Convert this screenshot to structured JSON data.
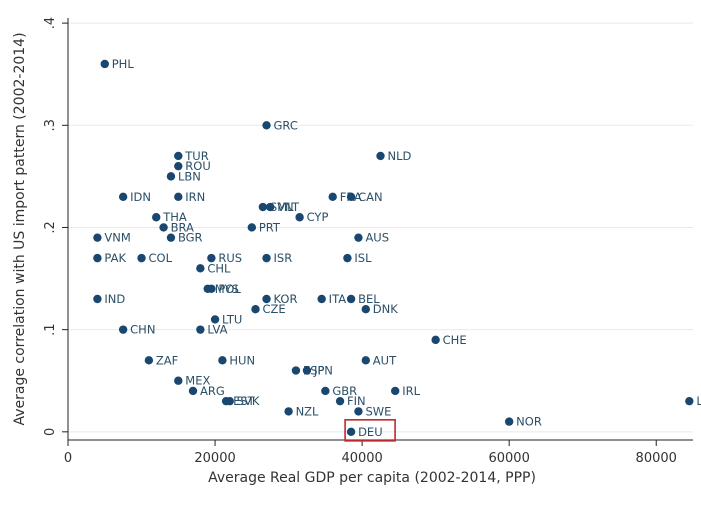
{
  "chart_data": {
    "type": "scatter",
    "xlabel": "Average Real GDP per capita (2002-2014, PPP)",
    "ylabel": "Average correlation with US import pattern (2002-2014)",
    "xlim": [
      0,
      85000
    ],
    "ylim": [
      -0.008,
      0.405
    ],
    "xticks": [
      {
        "value": 0,
        "label": "0"
      },
      {
        "value": 20000,
        "label": "20000"
      },
      {
        "value": 40000,
        "label": "40000"
      },
      {
        "value": 60000,
        "label": "60000"
      },
      {
        "value": 80000,
        "label": "80000"
      }
    ],
    "yticks": [
      {
        "value": 0,
        "label": "0"
      },
      {
        "value": 0.1,
        "label": ".1"
      },
      {
        "value": 0.2,
        "label": ".2"
      },
      {
        "value": 0.3,
        "label": ".3"
      },
      {
        "value": 0.4,
        "label": ".4"
      }
    ],
    "grid": true,
    "highlight": "DEU",
    "points": [
      {
        "label": "PHL",
        "x": 5000,
        "y": 0.36
      },
      {
        "label": "GRC",
        "x": 27000,
        "y": 0.3
      },
      {
        "label": "NLD",
        "x": 42500,
        "y": 0.27
      },
      {
        "label": "TUR",
        "x": 15000,
        "y": 0.27
      },
      {
        "label": "ROU",
        "x": 15000,
        "y": 0.26
      },
      {
        "label": "LBN",
        "x": 14000,
        "y": 0.25
      },
      {
        "label": "IDN",
        "x": 7500,
        "y": 0.23
      },
      {
        "label": "IRN",
        "x": 15000,
        "y": 0.23
      },
      {
        "label": "FRA",
        "x": 36000,
        "y": 0.23
      },
      {
        "label": "CAN",
        "x": 38500,
        "y": 0.23
      },
      {
        "label": "SVN",
        "x": 26500,
        "y": 0.22
      },
      {
        "label": "MLT",
        "x": 27500,
        "y": 0.22
      },
      {
        "label": "CYP",
        "x": 31500,
        "y": 0.21
      },
      {
        "label": "THA",
        "x": 12000,
        "y": 0.21
      },
      {
        "label": "BRA",
        "x": 13000,
        "y": 0.2
      },
      {
        "label": "PRT",
        "x": 25000,
        "y": 0.2
      },
      {
        "label": "VNM",
        "x": 4000,
        "y": 0.19
      },
      {
        "label": "BGR",
        "x": 14000,
        "y": 0.19
      },
      {
        "label": "AUS",
        "x": 39500,
        "y": 0.19
      },
      {
        "label": "PAK",
        "x": 4000,
        "y": 0.17
      },
      {
        "label": "COL",
        "x": 10000,
        "y": 0.17
      },
      {
        "label": "RUS",
        "x": 19500,
        "y": 0.17
      },
      {
        "label": "ISR",
        "x": 27000,
        "y": 0.17
      },
      {
        "label": "ISL",
        "x": 38000,
        "y": 0.17
      },
      {
        "label": "CHL",
        "x": 18000,
        "y": 0.16
      },
      {
        "label": "MYS",
        "x": 19000,
        "y": 0.14
      },
      {
        "label": "POL",
        "x": 19500,
        "y": 0.14
      },
      {
        "label": "IND",
        "x": 4000,
        "y": 0.13
      },
      {
        "label": "KOR",
        "x": 27000,
        "y": 0.13
      },
      {
        "label": "ITA",
        "x": 34500,
        "y": 0.13
      },
      {
        "label": "BEL",
        "x": 38500,
        "y": 0.13
      },
      {
        "label": "DNK",
        "x": 40500,
        "y": 0.12
      },
      {
        "label": "CZE",
        "x": 25500,
        "y": 0.12
      },
      {
        "label": "LTU",
        "x": 20000,
        "y": 0.11
      },
      {
        "label": "CHN",
        "x": 7500,
        "y": 0.1
      },
      {
        "label": "LVA",
        "x": 18000,
        "y": 0.1
      },
      {
        "label": "CHE",
        "x": 50000,
        "y": 0.09
      },
      {
        "label": "ZAF",
        "x": 11000,
        "y": 0.07
      },
      {
        "label": "HUN",
        "x": 21000,
        "y": 0.07
      },
      {
        "label": "AUT",
        "x": 40500,
        "y": 0.07
      },
      {
        "label": "ESP",
        "x": 31000,
        "y": 0.06
      },
      {
        "label": "JPN",
        "x": 32500,
        "y": 0.06
      },
      {
        "label": "MEX",
        "x": 15000,
        "y": 0.05
      },
      {
        "label": "ARG",
        "x": 17000,
        "y": 0.04
      },
      {
        "label": "GBR",
        "x": 35000,
        "y": 0.04
      },
      {
        "label": "IRL",
        "x": 44500,
        "y": 0.04
      },
      {
        "label": "EST",
        "x": 21500,
        "y": 0.03
      },
      {
        "label": "SVK",
        "x": 22000,
        "y": 0.03
      },
      {
        "label": "FIN",
        "x": 37000,
        "y": 0.03
      },
      {
        "label": "LUX",
        "x": 84500,
        "y": 0.03
      },
      {
        "label": "NZL",
        "x": 30000,
        "y": 0.02
      },
      {
        "label": "SWE",
        "x": 39500,
        "y": 0.02
      },
      {
        "label": "NOR",
        "x": 60000,
        "y": 0.01
      },
      {
        "label": "DEU",
        "x": 38500,
        "y": 0.0
      }
    ]
  }
}
